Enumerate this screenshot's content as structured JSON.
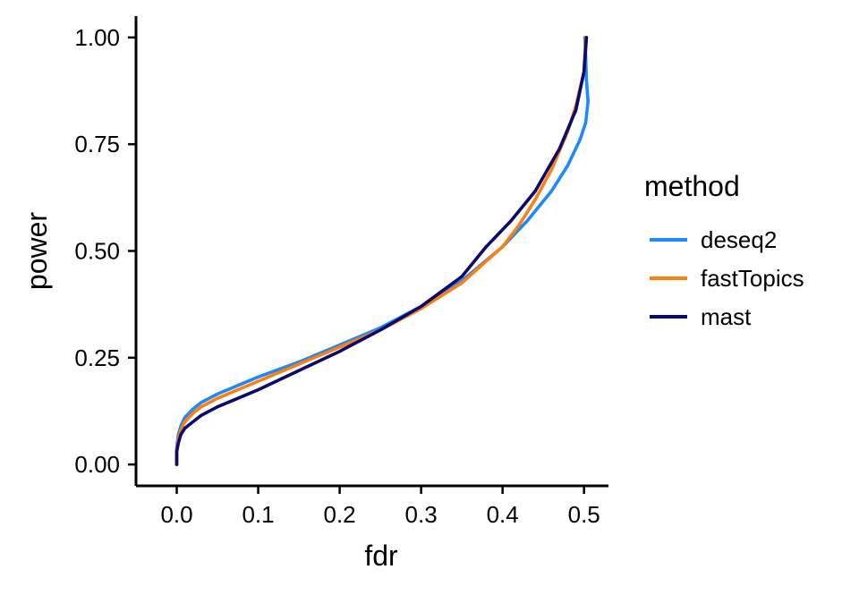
{
  "chart_data": {
    "type": "line",
    "title": "",
    "xlabel": "fdr",
    "ylabel": "power",
    "xlim": [
      -0.05,
      0.53
    ],
    "ylim": [
      -0.05,
      1.05
    ],
    "xticks": [
      0.0,
      0.1,
      0.2,
      0.3,
      0.4,
      0.5
    ],
    "xtick_labels": [
      "0.0",
      "0.1",
      "0.2",
      "0.3",
      "0.4",
      "0.5"
    ],
    "yticks": [
      0.0,
      0.25,
      0.5,
      0.75,
      1.0
    ],
    "ytick_labels": [
      "0.00",
      "0.25",
      "0.50",
      "0.75",
      "1.00"
    ],
    "grid": false,
    "legend": {
      "title": "method",
      "position": "right"
    },
    "series": [
      {
        "name": "deseq2",
        "color": "#1E88FF",
        "points": [
          [
            0.0,
            0.0
          ],
          [
            0.0,
            0.04
          ],
          [
            0.002,
            0.07
          ],
          [
            0.005,
            0.09
          ],
          [
            0.01,
            0.11
          ],
          [
            0.02,
            0.13
          ],
          [
            0.03,
            0.145
          ],
          [
            0.05,
            0.165
          ],
          [
            0.075,
            0.185
          ],
          [
            0.1,
            0.205
          ],
          [
            0.15,
            0.24
          ],
          [
            0.2,
            0.28
          ],
          [
            0.25,
            0.32
          ],
          [
            0.3,
            0.37
          ],
          [
            0.35,
            0.43
          ],
          [
            0.4,
            0.51
          ],
          [
            0.43,
            0.57
          ],
          [
            0.46,
            0.64
          ],
          [
            0.48,
            0.7
          ],
          [
            0.495,
            0.76
          ],
          [
            0.502,
            0.8
          ],
          [
            0.505,
            0.85
          ],
          [
            0.503,
            0.9
          ],
          [
            0.502,
            0.96
          ],
          [
            0.501,
            1.0
          ]
        ]
      },
      {
        "name": "fastTopics",
        "color": "#FF7F0E",
        "points": [
          [
            0.0,
            0.0
          ],
          [
            0.0,
            0.035
          ],
          [
            0.002,
            0.06
          ],
          [
            0.005,
            0.08
          ],
          [
            0.01,
            0.1
          ],
          [
            0.02,
            0.12
          ],
          [
            0.03,
            0.135
          ],
          [
            0.05,
            0.155
          ],
          [
            0.075,
            0.175
          ],
          [
            0.1,
            0.195
          ],
          [
            0.15,
            0.235
          ],
          [
            0.2,
            0.275
          ],
          [
            0.25,
            0.315
          ],
          [
            0.3,
            0.365
          ],
          [
            0.35,
            0.425
          ],
          [
            0.4,
            0.51
          ],
          [
            0.42,
            0.56
          ],
          [
            0.44,
            0.62
          ],
          [
            0.46,
            0.69
          ],
          [
            0.48,
            0.78
          ],
          [
            0.49,
            0.84
          ],
          [
            0.5,
            0.92
          ],
          [
            0.502,
            1.0
          ]
        ]
      },
      {
        "name": "mast",
        "color": "#0A0A6E",
        "points": [
          [
            0.0,
            0.0
          ],
          [
            0.0,
            0.03
          ],
          [
            0.002,
            0.05
          ],
          [
            0.005,
            0.07
          ],
          [
            0.01,
            0.085
          ],
          [
            0.02,
            0.1
          ],
          [
            0.03,
            0.115
          ],
          [
            0.05,
            0.135
          ],
          [
            0.075,
            0.155
          ],
          [
            0.1,
            0.175
          ],
          [
            0.15,
            0.22
          ],
          [
            0.2,
            0.265
          ],
          [
            0.25,
            0.315
          ],
          [
            0.3,
            0.37
          ],
          [
            0.35,
            0.44
          ],
          [
            0.38,
            0.51
          ],
          [
            0.41,
            0.57
          ],
          [
            0.44,
            0.64
          ],
          [
            0.47,
            0.74
          ],
          [
            0.49,
            0.83
          ],
          [
            0.5,
            0.92
          ],
          [
            0.503,
            1.0
          ]
        ]
      }
    ]
  }
}
